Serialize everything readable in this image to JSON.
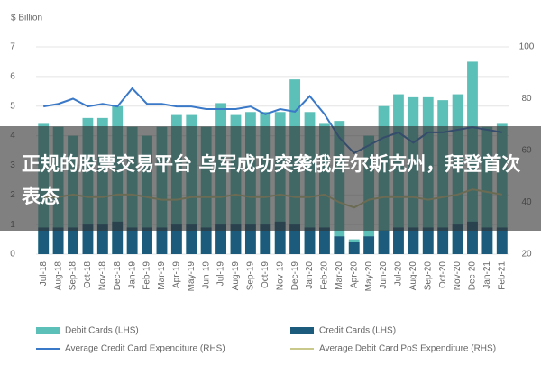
{
  "chart_data": {
    "type": "bar",
    "y_label": "$ Billion",
    "overlay_caption": "正规的股票交易平台 乌军成功突袭俄库尔斯克州，拜登首次表态",
    "categories": [
      "Jul-18",
      "Aug-18",
      "Sep-18",
      "Oct-18",
      "Nov-18",
      "Dec-18",
      "Jan-19",
      "Feb-19",
      "Mar-19",
      "Apr-19",
      "May-19",
      "Jun-19",
      "Jul-19",
      "Aug-19",
      "Sep-19",
      "Oct-19",
      "Nov-19",
      "Dec-19",
      "Jan-20",
      "Feb-20",
      "Mar-20",
      "Apr-20",
      "May-20",
      "Jun-20",
      "Jul-20",
      "Aug-20",
      "Sep-20",
      "Oct-20",
      "Nov-20",
      "Dec-20",
      "Jan-21",
      "Feb-21"
    ],
    "series": [
      {
        "name": "Debit Cards (LHS)",
        "type": "bar",
        "color": "#5cbfb8",
        "values": [
          4.4,
          4.3,
          4.0,
          4.6,
          4.6,
          5.0,
          4.3,
          4.0,
          4.3,
          4.7,
          4.7,
          4.3,
          5.1,
          4.7,
          4.8,
          4.8,
          4.8,
          5.9,
          4.8,
          4.4,
          4.5,
          0.5,
          4.0,
          5.0,
          5.4,
          5.3,
          5.3,
          5.2,
          5.4,
          6.5,
          4.3,
          4.4
        ]
      },
      {
        "name": "Credit Cards (LHS)",
        "type": "bar",
        "color": "#1d5b7c",
        "values": [
          0.9,
          0.9,
          0.9,
          1.0,
          1.0,
          1.1,
          0.9,
          0.9,
          0.9,
          1.0,
          1.0,
          0.9,
          1.0,
          1.0,
          1.0,
          1.0,
          1.1,
          1.0,
          0.9,
          0.9,
          0.6,
          0.4,
          0.6,
          0.8,
          0.9,
          0.9,
          0.9,
          0.9,
          1.0,
          1.1,
          0.9,
          0.9
        ]
      },
      {
        "name": "Average Credit Card Expenditure (RHS)",
        "type": "line",
        "axis": "y2",
        "color": "#3a78c8",
        "values": [
          77,
          78,
          80,
          77,
          78,
          77,
          84,
          78,
          78,
          77,
          77,
          76,
          76,
          76,
          77,
          74,
          76,
          75,
          81,
          74,
          65,
          59,
          62,
          65,
          67,
          63,
          67,
          67,
          68,
          69,
          68,
          67
        ]
      },
      {
        "name": "Average Debit Card PoS Expenditure (RHS)",
        "type": "line",
        "axis": "y2",
        "color": "#c8c98a",
        "values": [
          42,
          42,
          43,
          42,
          42,
          43,
          43,
          42,
          41,
          41,
          42,
          42,
          42,
          43,
          42,
          42,
          43,
          42,
          42,
          43,
          40,
          38,
          41,
          42,
          42,
          42,
          41,
          42,
          43,
          45,
          44,
          43
        ]
      }
    ],
    "ylim": [
      0,
      7
    ],
    "yticks": [
      0,
      1,
      2,
      3,
      4,
      5,
      6,
      7
    ],
    "y2lim": [
      20,
      100
    ],
    "y2ticks": [
      20,
      40,
      60,
      80,
      100
    ],
    "grid": true
  }
}
